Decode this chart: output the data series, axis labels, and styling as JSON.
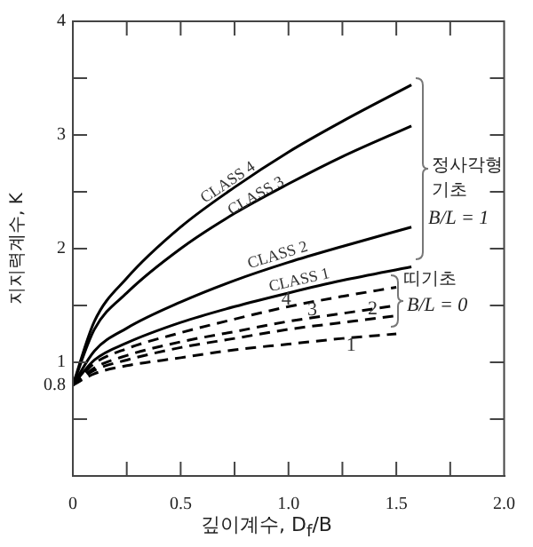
{
  "chart_data": {
    "type": "line",
    "xlabel": "깊이계수, D$_{f}$/B",
    "ylabel": "지지력계수, K",
    "xlim": [
      0,
      2
    ],
    "ylim": [
      0,
      4
    ],
    "xticks": [
      0,
      {
        "value": 0.25,
        "label": null
      },
      0.5,
      {
        "value": 0.75,
        "label": null
      },
      {
        "value": 1,
        "label": "1.0"
      },
      {
        "value": 1.25,
        "label": null
      },
      1.5,
      {
        "value": 1.75,
        "label": null
      },
      {
        "value": 2,
        "label": "2.0"
      }
    ],
    "yticks": [
      {
        "value": 0.5,
        "label": null
      },
      0.8,
      1,
      {
        "value": 1.5,
        "label": null
      },
      2,
      {
        "value": 2.5,
        "label": null
      },
      3,
      {
        "value": 3.5,
        "label": null
      },
      4
    ],
    "grid": false,
    "legend": false,
    "marker": "none",
    "series": [
      {
        "color": "#000000",
        "line_style": "solid",
        "x": [
          0,
          0.1,
          0.25,
          0.5,
          0.75,
          1.0,
          1.25,
          1.57
        ],
        "values": [
          0.8,
          1.36,
          1.74,
          2.19,
          2.54,
          2.85,
          3.12,
          3.44
        ]
      },
      {
        "color": "#000000",
        "line_style": "solid",
        "x": [
          0,
          0.1,
          0.25,
          0.5,
          0.75,
          1.0,
          1.25,
          1.57
        ],
        "values": [
          0.8,
          1.29,
          1.61,
          2.0,
          2.31,
          2.57,
          2.81,
          3.08
        ]
      },
      {
        "color": "#000000",
        "line_style": "solid",
        "x": [
          0,
          0.1,
          0.25,
          0.5,
          0.75,
          1.0,
          1.25,
          1.57
        ],
        "values": [
          0.8,
          1.1,
          1.3,
          1.53,
          1.72,
          1.88,
          2.02,
          2.19
        ]
      },
      {
        "color": "#000000",
        "line_style": "solid",
        "x": [
          0,
          0.1,
          0.25,
          0.5,
          0.75,
          1.0,
          1.25,
          1.57
        ],
        "values": [
          0.8,
          1.02,
          1.17,
          1.35,
          1.49,
          1.61,
          1.72,
          1.84
        ]
      },
      {
        "color": "#000000",
        "line_style": "dashed",
        "x": [
          0,
          0.1,
          0.25,
          0.5,
          0.75,
          1.0,
          1.25,
          1.5
        ],
        "values": [
          0.8,
          0.99,
          1.12,
          1.26,
          1.38,
          1.49,
          1.58,
          1.66
        ]
      },
      {
        "color": "#000000",
        "line_style": "dashed",
        "x": [
          0,
          0.1,
          0.25,
          0.5,
          0.75,
          1.0,
          1.25,
          1.5
        ],
        "values": [
          0.8,
          0.95,
          1.06,
          1.18,
          1.27,
          1.36,
          1.43,
          1.5
        ]
      },
      {
        "color": "#000000",
        "line_style": "dashed",
        "x": [
          0,
          0.1,
          0.25,
          0.5,
          0.75,
          1.0,
          1.25,
          1.5
        ],
        "values": [
          0.8,
          0.93,
          1.02,
          1.13,
          1.21,
          1.29,
          1.35,
          1.41
        ]
      },
      {
        "color": "#000000",
        "line_style": "dashed",
        "x": [
          0,
          0.1,
          0.25,
          0.5,
          0.75,
          1.0,
          1.25,
          1.5
        ],
        "values": [
          0.8,
          0.9,
          0.97,
          1.04,
          1.11,
          1.16,
          1.21,
          1.25
        ]
      }
    ],
    "annotations": [
      {
        "text": "CLASS 4",
        "x": 0.72,
        "y": 2.58
      },
      {
        "text": "CLASS 3",
        "x": 0.85,
        "y": 2.46
      },
      {
        "text": "CLASS 2",
        "x": 0.95,
        "y": 1.94
      },
      {
        "text": "CLASS 1",
        "x": 1.05,
        "y": 1.72
      },
      {
        "text": "4",
        "x": 0.99,
        "y": 1.55
      },
      {
        "text": "3",
        "x": 1.11,
        "y": 1.46
      },
      {
        "text": "2",
        "x": 1.39,
        "y": 1.47
      },
      {
        "text": "1",
        "x": 1.29,
        "y": 1.15
      },
      "정사각형",
      "기초",
      "B/L = 1",
      "띠기초",
      "B/L = 0"
    ]
  }
}
